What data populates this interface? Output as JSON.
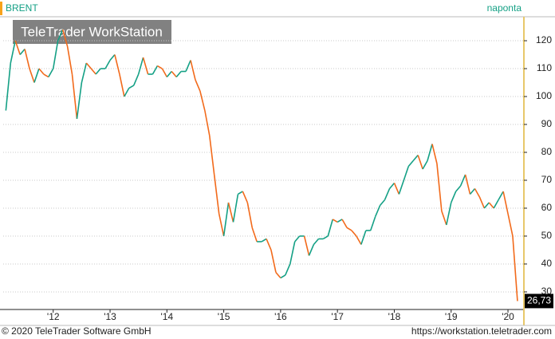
{
  "chart_data": {
    "type": "line",
    "title": "BRENT",
    "period": "naponta",
    "watermark": "TeleTrader WorkStation",
    "footer_left": "© 2020 TeleTrader Software GmbH",
    "footer_right": "https://workstation.teletrader.com",
    "up_color": "#14a085",
    "down_color": "#f26a1b",
    "x": [
      2011.167,
      2011.25,
      2011.333,
      2011.417,
      2011.5,
      2011.583,
      2011.667,
      2011.75,
      2011.833,
      2011.917,
      2012.0,
      2012.083,
      2012.167,
      2012.25,
      2012.333,
      2012.417,
      2012.5,
      2012.583,
      2012.667,
      2012.75,
      2012.833,
      2012.917,
      2013.0,
      2013.083,
      2013.167,
      2013.25,
      2013.333,
      2013.417,
      2013.5,
      2013.583,
      2013.667,
      2013.75,
      2013.833,
      2013.917,
      2014.0,
      2014.083,
      2014.167,
      2014.25,
      2014.333,
      2014.417,
      2014.5,
      2014.583,
      2014.667,
      2014.75,
      2014.833,
      2014.917,
      2015.0,
      2015.083,
      2015.167,
      2015.25,
      2015.333,
      2015.417,
      2015.5,
      2015.583,
      2015.667,
      2015.75,
      2015.833,
      2015.917,
      2016.0,
      2016.083,
      2016.167,
      2016.25,
      2016.333,
      2016.417,
      2016.5,
      2016.583,
      2016.667,
      2016.75,
      2016.833,
      2016.917,
      2017.0,
      2017.083,
      2017.167,
      2017.25,
      2017.333,
      2017.417,
      2017.5,
      2017.583,
      2017.667,
      2017.75,
      2017.833,
      2017.917,
      2018.0,
      2018.083,
      2018.167,
      2018.25,
      2018.333,
      2018.417,
      2018.5,
      2018.583,
      2018.667,
      2018.75,
      2018.833,
      2018.917,
      2019.0,
      2019.083,
      2019.167,
      2019.25,
      2019.333,
      2019.417,
      2019.5,
      2019.583,
      2019.667,
      2019.75,
      2019.833,
      2019.917,
      2020.0,
      2020.083,
      2020.167
    ],
    "values": [
      95,
      112,
      120,
      115,
      117,
      110,
      105,
      110,
      108,
      107,
      110,
      120,
      124,
      118,
      108,
      92,
      105,
      112,
      110,
      108,
      110,
      110,
      113,
      115,
      108,
      100,
      103,
      104,
      108,
      114,
      108,
      108,
      111,
      110,
      107,
      109,
      107,
      109,
      109,
      113,
      106,
      102,
      95,
      86,
      72,
      58,
      50,
      62,
      55,
      65,
      66,
      62,
      53,
      48,
      48,
      49,
      45,
      37,
      35,
      36,
      40,
      48,
      50,
      50,
      43,
      47,
      49,
      49,
      50,
      56,
      55,
      56,
      53,
      52,
      50,
      47,
      52,
      52,
      57,
      61,
      63,
      67,
      69,
      65,
      70,
      75,
      77,
      79,
      74,
      77,
      83,
      76,
      59,
      54,
      62,
      66,
      68,
      72,
      65,
      67,
      64,
      60,
      62,
      60,
      63,
      66,
      58,
      50,
      26.73
    ],
    "last_price": {
      "value": 26.73,
      "label": "26,73"
    },
    "xlim": [
      2011.12,
      2020.28
    ],
    "xticks": [
      {
        "value": 2012,
        "label": "'12"
      },
      {
        "value": 2013,
        "label": "'13"
      },
      {
        "value": 2014,
        "label": "'14"
      },
      {
        "value": 2015,
        "label": "'15"
      },
      {
        "value": 2016,
        "label": "'16"
      },
      {
        "value": 2017,
        "label": "'17"
      },
      {
        "value": 2018,
        "label": "'18"
      },
      {
        "value": 2019,
        "label": "'19"
      },
      {
        "value": 2020,
        "label": "'20"
      }
    ],
    "ylim": [
      23.7,
      128.3
    ],
    "yticks": [
      30,
      40,
      50,
      60,
      70,
      80,
      90,
      100,
      110,
      120
    ],
    "grid": true
  }
}
